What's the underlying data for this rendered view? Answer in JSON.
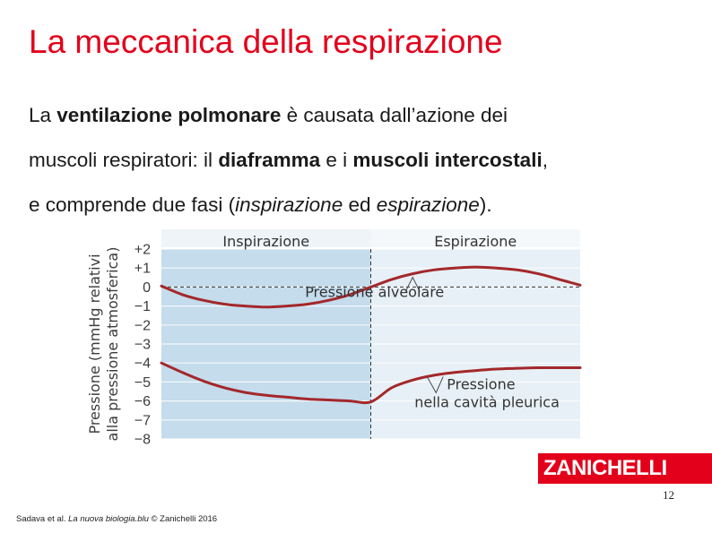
{
  "slide": {
    "title": "La meccanica della respirazione",
    "line1": {
      "pre": "La ",
      "b1": "ventilazione polmonare",
      "post": " è causata dall’azione dei"
    },
    "line2": {
      "pre": "muscoli respiratori: il ",
      "b1": "diaframma",
      "mid": " e i ",
      "b2": "muscoli intercostali",
      "post": ","
    },
    "line3": {
      "pre": "e comprende due fasi (",
      "i1": "inspirazione",
      "mid": " ed ",
      "i2": "espirazione",
      "post": ")."
    },
    "page_number": "12",
    "credit": {
      "pre": "Sadava et al. ",
      "book": "La nuova biologia.blu",
      "post": " © Zanichelli 2016"
    },
    "logo_text": "ZANICHELLI"
  },
  "colors": {
    "title": "#e3001b",
    "curve": "#a3282b",
    "inspiration_bg": "#c4dcec",
    "expiration_bg": "#e7f0f6",
    "axis_text": "#3c3c3c",
    "logo_bg": "#e3001b"
  },
  "chart_data": {
    "type": "line",
    "ylabel_line1": "Pressione (mmHg relativi",
    "ylabel_line2": "alla pressione atmosferica)",
    "y_ticks": [
      "+2",
      "+1",
      "0",
      "−1",
      "−2",
      "−3",
      "−4",
      "−5",
      "−6",
      "−7",
      "−8"
    ],
    "ylim": [
      -8,
      2
    ],
    "phases": [
      "Inspirazione",
      "Espirazione"
    ],
    "phase_split": 0.5,
    "series": [
      {
        "name": "Pressione alveolare",
        "x": [
          0,
          0.05,
          0.1,
          0.15,
          0.2,
          0.25,
          0.3,
          0.35,
          0.4,
          0.45,
          0.5,
          0.55,
          0.6,
          0.65,
          0.7,
          0.75,
          0.8,
          0.85,
          0.9,
          0.95,
          1.0
        ],
        "y": [
          0.05,
          -0.4,
          -0.7,
          -0.9,
          -1.0,
          -1.05,
          -1.0,
          -0.9,
          -0.7,
          -0.4,
          0,
          0.4,
          0.7,
          0.9,
          1.0,
          1.05,
          1.0,
          0.9,
          0.7,
          0.4,
          0.1
        ]
      },
      {
        "name": "Pressione nella cavità pleurica",
        "x": [
          0,
          0.05,
          0.1,
          0.15,
          0.2,
          0.25,
          0.3,
          0.35,
          0.4,
          0.45,
          0.5,
          0.55,
          0.6,
          0.65,
          0.7,
          0.75,
          0.8,
          0.85,
          0.9,
          0.95,
          1.0
        ],
        "y": [
          -4.0,
          -4.5,
          -4.95,
          -5.3,
          -5.55,
          -5.7,
          -5.8,
          -5.9,
          -5.95,
          -6.0,
          -6.05,
          -5.3,
          -4.9,
          -4.65,
          -4.5,
          -4.4,
          -4.32,
          -4.28,
          -4.25,
          -4.25,
          -4.25
        ]
      }
    ],
    "annotations": [
      {
        "text_lines": [
          "Pressione alveolare"
        ],
        "series": 0,
        "x": 0.6
      },
      {
        "text_lines": [
          "Pressione",
          "nella cavità pleurica"
        ],
        "series": 1,
        "x": 0.69
      }
    ]
  }
}
